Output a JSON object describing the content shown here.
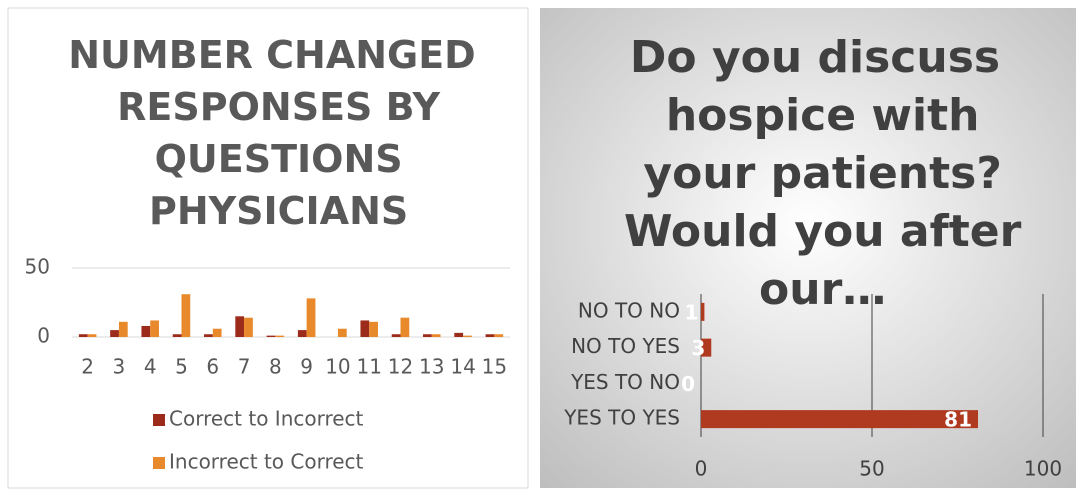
{
  "chart_data": [
    {
      "type": "bar",
      "title": "NUMBER CHANGED RESPONSES BY QUESTIONS PHYSICIANS",
      "categories": [
        "2",
        "3",
        "4",
        "5",
        "6",
        "7",
        "8",
        "9",
        "10",
        "11",
        "12",
        "13",
        "14",
        "15"
      ],
      "series": [
        {
          "name": "Correct to Incorrect",
          "color": "#9c2b1b",
          "values": [
            2,
            5,
            8,
            2,
            2,
            15,
            1,
            5,
            0,
            12,
            2,
            2,
            3,
            2
          ]
        },
        {
          "name": "Incorrect to Correct",
          "color": "#e8892b",
          "values": [
            2,
            11,
            12,
            31,
            6,
            14,
            1,
            28,
            6,
            11,
            14,
            2,
            1,
            2
          ]
        }
      ],
      "ylim": [
        0,
        50
      ],
      "yticks": [
        0,
        50
      ],
      "grid": true,
      "legend": "bottom"
    },
    {
      "type": "hbar",
      "title": "Do you discuss hospice with your patients? Would you after our…",
      "categories": [
        "NO TO NO",
        "NO TO YES",
        "YES TO NO",
        "YES TO YES"
      ],
      "values": [
        1,
        3,
        0,
        81
      ],
      "color": "#b03a1f",
      "xlim": [
        0,
        100
      ],
      "xticks": [
        0,
        50,
        100
      ],
      "grid": true
    }
  ]
}
